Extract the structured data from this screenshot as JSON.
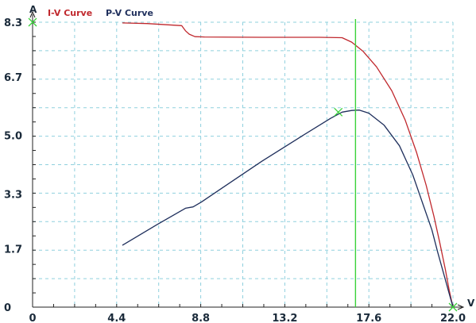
{
  "chart_data": {
    "type": "line",
    "x_unit": "V",
    "y_unit": "A",
    "xlim": [
      0,
      22
    ],
    "ylim": [
      0,
      8.3
    ],
    "x_ticks": [
      {
        "value": 0,
        "label": "0"
      },
      {
        "value": 4.4,
        "label": "4.4"
      },
      {
        "value": 8.8,
        "label": "8.8"
      },
      {
        "value": 13.2,
        "label": "13.2"
      },
      {
        "value": 17.6,
        "label": "17.6"
      },
      {
        "value": 22,
        "label": "22.0"
      }
    ],
    "y_ticks": [
      {
        "value": 0,
        "label": "0"
      },
      {
        "value": 1.7,
        "label": "1.7"
      },
      {
        "value": 3.3,
        "label": "3.3"
      },
      {
        "value": 5.0,
        "label": "5.0"
      },
      {
        "value": 6.7,
        "label": "6.7"
      },
      {
        "value": 8.3,
        "label": "8.3"
      }
    ],
    "grid": true,
    "legend_position": "top-left",
    "series": [
      {
        "name": "I-V Curve",
        "color": "#c0282d",
        "x": [
          4.7,
          6.0,
          7.8,
          8.0,
          8.2,
          8.5,
          9.0,
          12.0,
          15.0,
          16.2,
          16.7,
          17.3,
          18.0,
          18.8,
          19.5,
          20.1,
          20.6,
          21.0,
          21.3,
          21.6,
          21.8,
          22.0
        ],
        "y": [
          8.28,
          8.26,
          8.2,
          8.05,
          7.95,
          7.88,
          7.87,
          7.86,
          7.86,
          7.85,
          7.72,
          7.45,
          7.0,
          6.3,
          5.45,
          4.5,
          3.55,
          2.65,
          1.9,
          1.1,
          0.5,
          0.0
        ]
      },
      {
        "name": "P-V Curve",
        "color": "#1f2f5c",
        "x": [
          4.7,
          6.5,
          8.0,
          8.4,
          8.8,
          10.0,
          12.0,
          14.0,
          15.6,
          16.2,
          16.7,
          17.1,
          17.6,
          18.4,
          19.2,
          19.9,
          20.4,
          20.9,
          21.2,
          21.5,
          21.8,
          22.0
        ],
        "y": [
          1.8,
          2.4,
          2.88,
          2.92,
          3.05,
          3.5,
          4.25,
          4.95,
          5.5,
          5.68,
          5.73,
          5.74,
          5.65,
          5.3,
          4.7,
          3.85,
          3.05,
          2.25,
          1.6,
          1.0,
          0.4,
          0.0
        ]
      }
    ],
    "vertical_marker": {
      "x": 16.9,
      "color": "#3ad23a"
    },
    "x_markers": [
      {
        "x": 0,
        "y": 8.3
      },
      {
        "x": 16.0,
        "y": 5.68
      },
      {
        "x": 22.0,
        "y": 0
      }
    ]
  }
}
